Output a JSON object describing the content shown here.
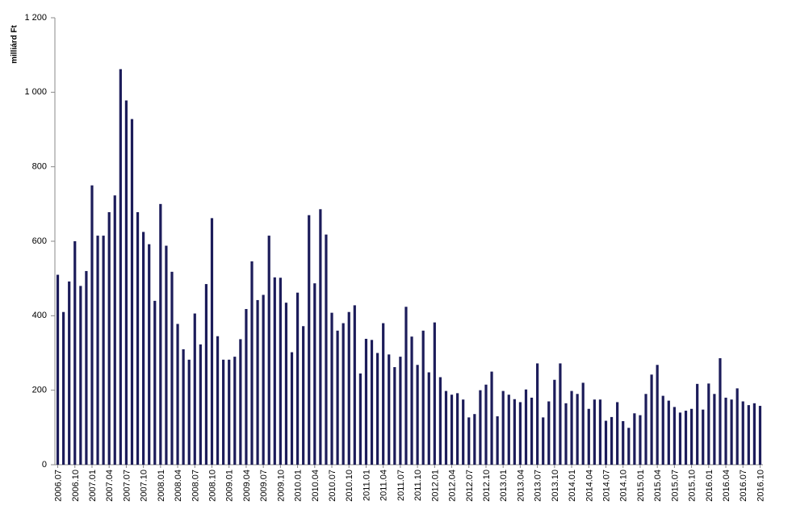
{
  "chart_data": {
    "type": "bar",
    "y_label": "milliárd Ft",
    "color": "#1c1c5a",
    "grid": false,
    "ylim": [
      0,
      1200
    ],
    "yticks": [
      0,
      200,
      400,
      600,
      800,
      {
        "value": 1000,
        "label": "1 000"
      },
      {
        "value": 1200,
        "label": "1 200"
      }
    ],
    "categories": [
      "2006.07",
      null,
      null,
      "2006.10",
      null,
      null,
      "2007.01",
      null,
      null,
      "2007.04",
      null,
      null,
      "2007.07",
      null,
      null,
      "2007.10",
      null,
      null,
      "2008.01",
      null,
      null,
      "2008.04",
      null,
      null,
      "2008.07",
      null,
      null,
      "2008.10",
      null,
      null,
      "2009.01",
      null,
      null,
      "2009.04",
      null,
      null,
      "2009.07",
      null,
      null,
      "2009.10",
      null,
      null,
      "2010.01",
      null,
      null,
      "2010.04",
      null,
      null,
      "2010.07",
      null,
      null,
      "2010.10",
      null,
      null,
      "2011.01",
      null,
      null,
      "2011.04",
      null,
      null,
      "2011.07",
      null,
      null,
      "2011.10",
      null,
      null,
      "2012.01",
      null,
      null,
      "2012.04",
      null,
      null,
      "2012.07",
      null,
      null,
      "2012.10",
      null,
      null,
      "2013.01",
      null,
      null,
      "2013.04",
      null,
      null,
      "2013.07",
      null,
      null,
      "2013.10",
      null,
      null,
      "2014.01",
      null,
      null,
      "2014.04",
      null,
      null,
      "2014.07",
      null,
      null,
      "2014.10",
      null,
      null,
      "2015.01",
      null,
      null,
      "2015.04",
      null,
      null,
      "2015.07",
      null,
      null,
      "2015.10",
      null,
      null,
      "2016.01",
      null,
      null,
      "2016.04",
      null,
      null,
      "2016.07",
      null,
      null,
      "2016.10"
    ],
    "values": [
      510,
      410,
      492,
      600,
      480,
      520,
      750,
      615,
      615,
      678,
      723,
      1062,
      978,
      928,
      678,
      625,
      592,
      440,
      700,
      588,
      518,
      378,
      310,
      282,
      406,
      323,
      485,
      662,
      345,
      282,
      282,
      290,
      337,
      418,
      546,
      442,
      456,
      615,
      503,
      502,
      435,
      302,
      462,
      372,
      670,
      487,
      686,
      618,
      408,
      360,
      380,
      410,
      428,
      245,
      338,
      335,
      300,
      380,
      296,
      262,
      290,
      424,
      344,
      268,
      360,
      248,
      382,
      235,
      198,
      188,
      192,
      175,
      127,
      136,
      200,
      215,
      250,
      130,
      198,
      188,
      176,
      168,
      202,
      180,
      272,
      127,
      170,
      228,
      272,
      165,
      198,
      190,
      220,
      150,
      175,
      175,
      118,
      128,
      168,
      117,
      99,
      138,
      133,
      190,
      242,
      268,
      185,
      172,
      155,
      140,
      145,
      150,
      217,
      148,
      218,
      190,
      286,
      180,
      175,
      205,
      170,
      160,
      165,
      158
    ]
  }
}
